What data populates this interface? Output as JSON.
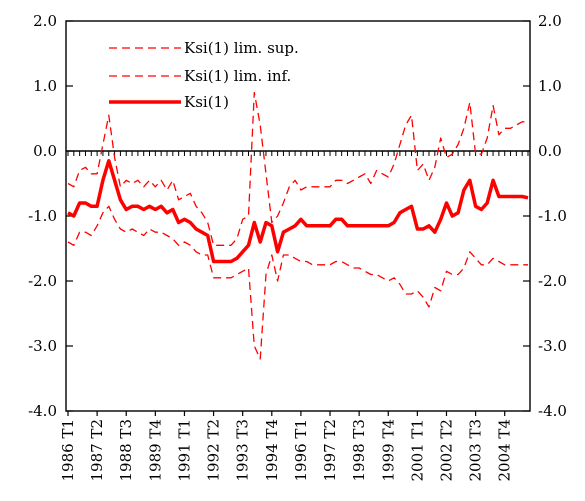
{
  "chart_data": {
    "type": "line",
    "title": "",
    "xlabel": "",
    "ylabel": "",
    "ylim": [
      -4.0,
      2.0
    ],
    "yticks": [
      "2.0",
      "1.0",
      "0.0",
      "-1.0",
      "-2.0",
      "-3.0",
      "-4.0"
    ],
    "ytick_values": [
      2,
      1,
      0,
      -1,
      -2,
      -3,
      -4
    ],
    "x_tick_labels": [
      "1986 T1",
      "1987 T2",
      "1988 T3",
      "1989 T4",
      "1991 T1",
      "1992 T2",
      "1993 T3",
      "1994 T4",
      "1996 T1",
      "1997 T2",
      "1998 T3",
      "1999 T4",
      "2001 T1",
      "2002 T2",
      "2003 T3",
      "2004 T4"
    ],
    "x_tick_index": [
      0,
      5,
      10,
      15,
      20,
      25,
      30,
      35,
      40,
      45,
      50,
      55,
      60,
      65,
      70,
      75
    ],
    "n_points": 80,
    "x_start": "1986 T1",
    "x_end": "2005 T4",
    "grid": false,
    "legend_position": "top-left",
    "series": [
      {
        "name": "Ksi(1) lim. sup.",
        "style": "dashed",
        "color": "#ff0000",
        "values": [
          -0.5,
          -0.55,
          -0.3,
          -0.25,
          -0.35,
          -0.35,
          0.1,
          0.55,
          -0.1,
          -0.55,
          -0.45,
          -0.5,
          -0.45,
          -0.55,
          -0.45,
          -0.55,
          -0.45,
          -0.6,
          -0.45,
          -0.75,
          -0.7,
          -0.65,
          -0.85,
          -0.95,
          -1.1,
          -1.45,
          -1.45,
          -1.45,
          -1.45,
          -1.35,
          -1.05,
          -1.0,
          0.9,
          0.4,
          -0.35,
          -1.1,
          -1.0,
          -0.8,
          -0.55,
          -0.45,
          -0.6,
          -0.55,
          -0.55,
          -0.55,
          -0.55,
          -0.55,
          -0.45,
          -0.45,
          -0.5,
          -0.45,
          -0.4,
          -0.35,
          -0.5,
          -0.3,
          -0.35,
          -0.4,
          -0.2,
          0.1,
          0.4,
          0.55,
          -0.3,
          -0.2,
          -0.45,
          -0.25,
          0.2,
          -0.1,
          -0.05,
          0.1,
          0.35,
          0.75,
          -0.05,
          -0.05,
          0.2,
          0.7,
          0.25,
          0.35,
          0.35,
          0.4,
          0.45,
          0.45
        ]
      },
      {
        "name": "Ksi(1) lim. inf.",
        "style": "dashed",
        "color": "#ff0000",
        "values": [
          -1.4,
          -1.45,
          -1.25,
          -1.25,
          -1.3,
          -1.15,
          -0.95,
          -0.85,
          -1.05,
          -1.2,
          -1.25,
          -1.2,
          -1.25,
          -1.3,
          -1.2,
          -1.25,
          -1.25,
          -1.3,
          -1.35,
          -1.45,
          -1.4,
          -1.45,
          -1.55,
          -1.6,
          -1.6,
          -1.95,
          -1.95,
          -1.95,
          -1.95,
          -1.9,
          -1.85,
          -1.8,
          -3.0,
          -3.2,
          -1.9,
          -1.6,
          -2.0,
          -1.6,
          -1.6,
          -1.65,
          -1.7,
          -1.7,
          -1.75,
          -1.75,
          -1.75,
          -1.75,
          -1.7,
          -1.7,
          -1.75,
          -1.8,
          -1.8,
          -1.85,
          -1.9,
          -1.9,
          -1.95,
          -2.0,
          -1.95,
          -2.05,
          -2.2,
          -2.2,
          -2.15,
          -2.25,
          -2.4,
          -2.1,
          -2.15,
          -1.85,
          -1.9,
          -1.9,
          -1.8,
          -1.55,
          -1.65,
          -1.75,
          -1.75,
          -1.65,
          -1.7,
          -1.75,
          -1.75,
          -1.75,
          -1.75,
          -1.75
        ]
      },
      {
        "name": "Ksi(1)",
        "style": "solid",
        "color": "#ff0000",
        "values": [
          -0.95,
          -1.0,
          -0.8,
          -0.8,
          -0.85,
          -0.85,
          -0.45,
          -0.15,
          -0.45,
          -0.75,
          -0.9,
          -0.85,
          -0.85,
          -0.9,
          -0.85,
          -0.9,
          -0.85,
          -0.95,
          -0.9,
          -1.1,
          -1.05,
          -1.1,
          -1.2,
          -1.25,
          -1.3,
          -1.7,
          -1.7,
          -1.7,
          -1.7,
          -1.65,
          -1.55,
          -1.45,
          -1.1,
          -1.4,
          -1.1,
          -1.15,
          -1.55,
          -1.25,
          -1.2,
          -1.15,
          -1.05,
          -1.15,
          -1.15,
          -1.15,
          -1.15,
          -1.15,
          -1.05,
          -1.05,
          -1.15,
          -1.15,
          -1.15,
          -1.15,
          -1.15,
          -1.15,
          -1.15,
          -1.15,
          -1.1,
          -0.95,
          -0.9,
          -0.85,
          -1.2,
          -1.2,
          -1.15,
          -1.25,
          -1.05,
          -0.8,
          -1.0,
          -0.95,
          -0.6,
          -0.45,
          -0.85,
          -0.9,
          -0.8,
          -0.45,
          -0.7,
          -0.7,
          -0.7,
          -0.7,
          -0.7,
          -0.72
        ]
      }
    ]
  }
}
